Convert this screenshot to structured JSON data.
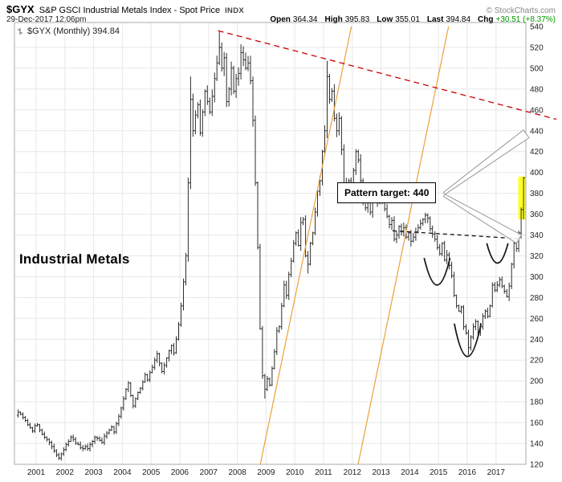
{
  "header": {
    "symbol": "$GYX",
    "title": "S&P GSCI Industrial Metals Index - Spot Price",
    "exchange": "INDX",
    "copyright": "© StockCharts.com",
    "timestamp": "29-Dec-2017 12:06pm",
    "quote": [
      {
        "label": "Open",
        "value": "364.34"
      },
      {
        "label": "High",
        "value": "395.83"
      },
      {
        "label": "Low",
        "value": "355.01"
      },
      {
        "label": "Last",
        "value": "394.84"
      },
      {
        "label": "Chg",
        "value": "+30.51 (+8.37%)",
        "color": "#009900"
      }
    ]
  },
  "chart": {
    "legend": "$GYX (Monthly) 394.84",
    "watermark": "Industrial Metals",
    "annotation_label": "Pattern target: 440"
  },
  "chart_data": {
    "type": "bar",
    "bar_style": "monthly-ohlc",
    "title": "$GYX (Monthly)",
    "ylim": [
      120,
      540
    ],
    "y_tick_step": 20,
    "x_years": [
      2001,
      2002,
      2003,
      2004,
      2005,
      2006,
      2007,
      2008,
      2009,
      2010,
      2011,
      2012,
      2013,
      2014,
      2015,
      2016,
      2017
    ],
    "start": {
      "year": 2000,
      "month": 5
    },
    "closes_by_year": {
      "2000": [
        170,
        168,
        165,
        162,
        158,
        155,
        152,
        157
      ],
      "2001": [
        158,
        153,
        149,
        146,
        144,
        141,
        137,
        133,
        129,
        126,
        130,
        134
      ],
      "2002": [
        139,
        142,
        146,
        144,
        140,
        139,
        136,
        135,
        137,
        135,
        139,
        142
      ],
      "2003": [
        146,
        145,
        143,
        141,
        147,
        150,
        153,
        156,
        151,
        159,
        166,
        174
      ],
      "2004": [
        183,
        192,
        198,
        186,
        176,
        183,
        189,
        193,
        199,
        206,
        201,
        208
      ],
      "2005": [
        213,
        220,
        226,
        217,
        209,
        215,
        222,
        229,
        234,
        227,
        240,
        254
      ],
      "2006": [
        272,
        295,
        320,
        390,
        470,
        440,
        455,
        465,
        438,
        458,
        478,
        468
      ],
      "2007": [
        458,
        473,
        490,
        505,
        520,
        500,
        510,
        468,
        480,
        500,
        478,
        490
      ],
      "2008": [
        495,
        515,
        508,
        500,
        505,
        488,
        450,
        390,
        328,
        250,
        205,
        192
      ],
      "2009": [
        202,
        196,
        212,
        228,
        248,
        252,
        272,
        292,
        282,
        302,
        315,
        332
      ],
      "2010": [
        342,
        330,
        352,
        355,
        320,
        312,
        332,
        342,
        362,
        382,
        392,
        420
      ],
      "2011": [
        440,
        492,
        470,
        478,
        452,
        440,
        452,
        422,
        390,
        380,
        392,
        382
      ],
      "2012": [
        402,
        420,
        412,
        392,
        372,
        366,
        372,
        362,
        382,
        376,
        372,
        386
      ],
      "2013": [
        372,
        365,
        358,
        350,
        354,
        336,
        340,
        348,
        343,
        347,
        338,
        342
      ],
      "2014": [
        334,
        338,
        343,
        347,
        351,
        355,
        359,
        356,
        346,
        341,
        336,
        328
      ],
      "2015": [
        322,
        332,
        316,
        321,
        311,
        301,
        282,
        272,
        267,
        271,
        252,
        246
      ],
      "2016": [
        232,
        242,
        252,
        257,
        247,
        252,
        262,
        267,
        262,
        272,
        292,
        287
      ],
      "2017": [
        292,
        297,
        291,
        286,
        281,
        291,
        312,
        332,
        327,
        342,
        364.33,
        394.84
      ]
    },
    "last_bar_ohlc": {
      "open": 364.34,
      "high": 395.83,
      "low": 355.01,
      "close": 394.84
    },
    "wick_overrides": {
      "2001-10": {
        "low": 124
      },
      "2006-05": {
        "high": 492
      },
      "2007-05": {
        "high": 535
      },
      "2008-02": {
        "high": 523
      },
      "2008-12": {
        "low": 183
      },
      "2010-06": {
        "low": 303
      },
      "2011-02": {
        "high": 507
      },
      "2016-01": {
        "low": 225
      }
    },
    "annotations": {
      "pattern_target_value": 440,
      "red_resistance_line": {
        "from": {
          "x": 2007.33,
          "v": 536
        },
        "to": {
          "x": 2019.1,
          "v": 451
        },
        "color": "#cc0000",
        "dashed": true
      },
      "orange_color": "#e9a23b",
      "orange_fan_lines": [
        {
          "from": {
            "x": 2008.8,
            "v": 120
          },
          "to": {
            "x": 2011.97,
            "v": 540
          }
        },
        {
          "from": {
            "x": 2012.2,
            "v": 120
          },
          "to": {
            "x": 2015.35,
            "v": 540
          }
        }
      ],
      "neckline": {
        "from": {
          "x": 2013.4,
          "v": 344
        },
        "to": {
          "x": 2017.8,
          "v": 336.5
        },
        "color": "#111111",
        "dashed": true
      },
      "arcs": [
        {
          "name": "left-shoulder-arc",
          "x1": 2014.5,
          "v1": 318,
          "cx": 2014.95,
          "cv": 266,
          "x2": 2015.4,
          "v2": 318
        },
        {
          "name": "head-arc",
          "x1": 2015.55,
          "v1": 255,
          "cx": 2016.0,
          "cv": 192,
          "x2": 2016.48,
          "v2": 255
        },
        {
          "name": "right-shoulder-arc",
          "x1": 2016.68,
          "v1": 332,
          "cx": 2017.05,
          "cv": 294,
          "x2": 2017.42,
          "v2": 332
        }
      ],
      "target_arrows": [
        {
          "from": {
            "x": 2015.2,
            "v": 380
          },
          "to": {
            "x": 2018.05,
            "v": 437
          }
        },
        {
          "from": {
            "x": 2015.2,
            "v": 378
          },
          "to": {
            "x": 2017.8,
            "v": 336
          }
        }
      ],
      "highlight_bar": {
        "x": 2017.9,
        "v_top": 396,
        "v_bottom": 355,
        "color": "#ffff00"
      }
    }
  }
}
